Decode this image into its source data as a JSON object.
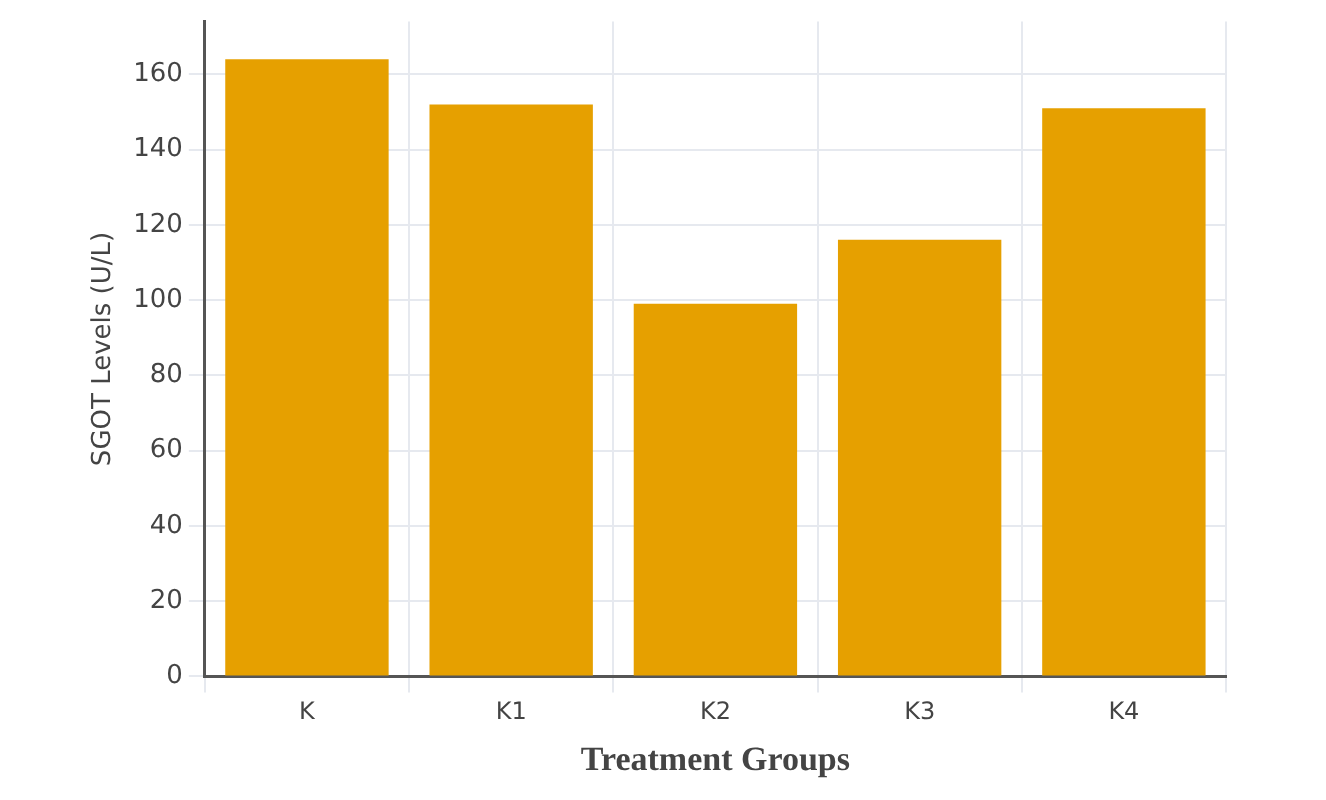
{
  "chart_data": {
    "type": "bar",
    "xlabel": "Treatment Groups",
    "ylabel": "SGOT Levels (U/L)",
    "categories": [
      "K",
      "K1",
      "K2",
      "K3",
      "K4"
    ],
    "values": [
      164,
      152,
      99,
      116,
      151
    ],
    "color": "#e6a000",
    "ylim": [
      0,
      174
    ],
    "yticks": [
      0,
      20,
      40,
      60,
      80,
      100,
      120,
      140,
      160
    ],
    "grid": true
  }
}
